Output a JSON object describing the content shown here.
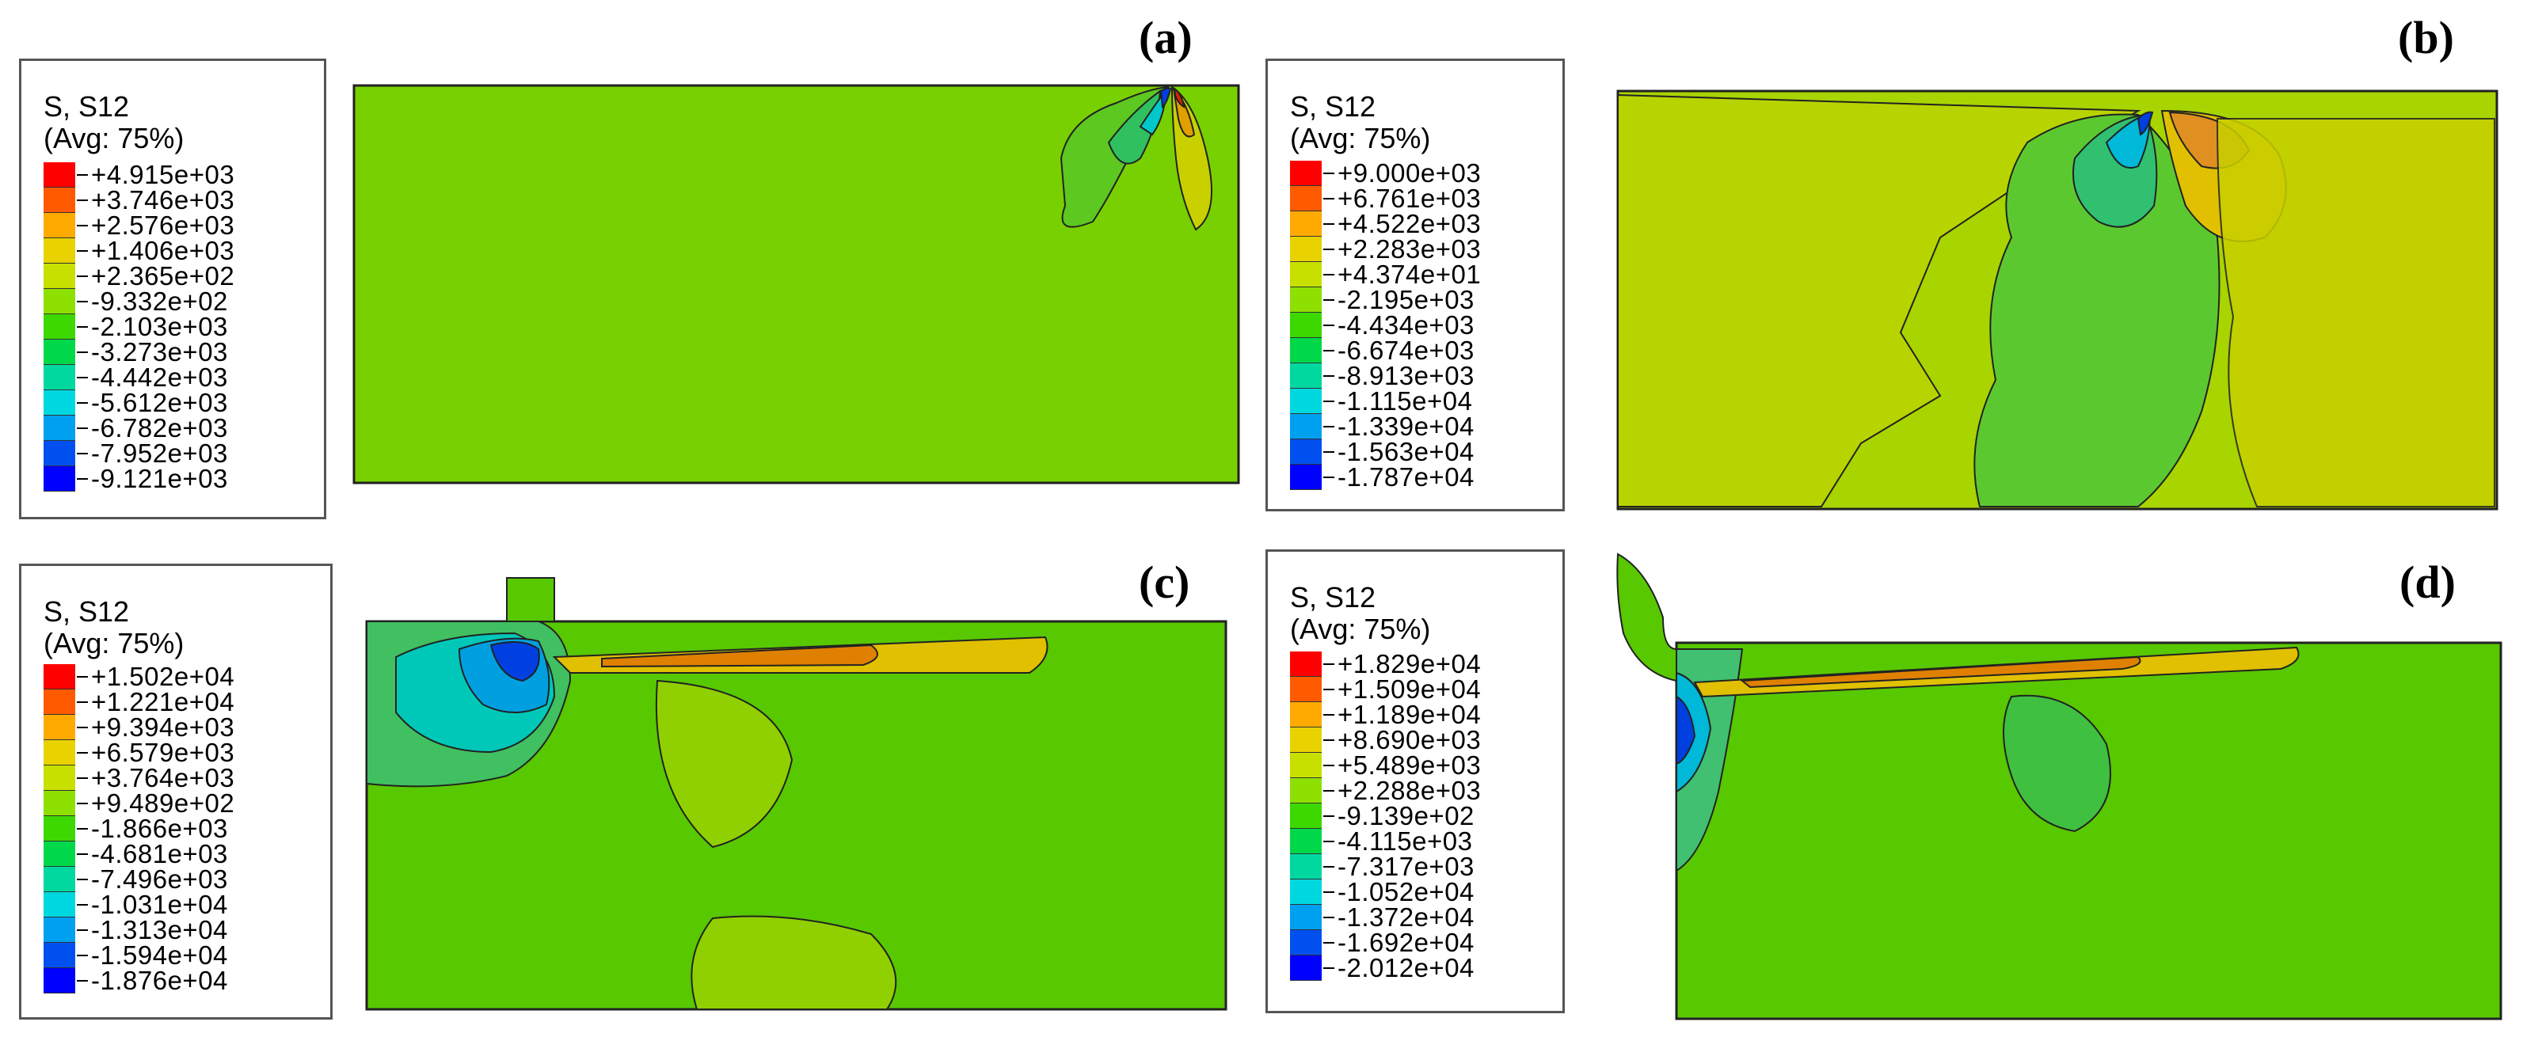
{
  "panels": [
    {
      "label": "(a)",
      "legend_title1": "S, S12",
      "legend_title2": "(Avg: 75%)",
      "legend_values": [
        "+4.915e+03",
        "+3.746e+03",
        "+2.576e+03",
        "+1.406e+03",
        "+2.365e+02",
        "-9.332e+02",
        "-2.103e+03",
        "-3.273e+03",
        "-4.442e+03",
        "-5.612e+03",
        "-6.782e+03",
        "-7.952e+03",
        "-9.121e+03"
      ]
    },
    {
      "label": "(b)",
      "legend_title1": "S, S12",
      "legend_title2": "(Avg: 75%)",
      "legend_values": [
        "+9.000e+03",
        "+6.761e+03",
        "+4.522e+03",
        "+2.283e+03",
        "+4.374e+01",
        "-2.195e+03",
        "-4.434e+03",
        "-6.674e+03",
        "-8.913e+03",
        "-1.115e+04",
        "-1.339e+04",
        "-1.563e+04",
        "-1.787e+04"
      ]
    },
    {
      "label": "(c)",
      "legend_title1": "S, S12",
      "legend_title2": "(Avg: 75%)",
      "legend_values": [
        "+1.502e+04",
        "+1.221e+04",
        "+9.394e+03",
        "+6.579e+03",
        "+3.764e+03",
        "+9.489e+02",
        "-1.866e+03",
        "-4.681e+03",
        "-7.496e+03",
        "-1.031e+04",
        "-1.313e+04",
        "-1.594e+04",
        "-1.876e+04"
      ]
    },
    {
      "label": "(d)",
      "legend_title1": "S, S12",
      "legend_title2": "(Avg: 75%)",
      "legend_values": [
        "+1.829e+04",
        "+1.509e+04",
        "+1.189e+04",
        "+8.690e+03",
        "+5.489e+03",
        "+2.288e+03",
        "-9.139e+02",
        "-4.115e+03",
        "-7.317e+03",
        "-1.052e+04",
        "-1.372e+04",
        "-1.692e+04",
        "-2.012e+04"
      ]
    }
  ],
  "colormap": [
    "#ff0000",
    "#ff5a00",
    "#ffaa00",
    "#e8d200",
    "#c8e000",
    "#8ee000",
    "#3cd800",
    "#00d84a",
    "#00d8a0",
    "#00d8e0",
    "#00a0f0",
    "#0050f0",
    "#0000ff"
  ]
}
